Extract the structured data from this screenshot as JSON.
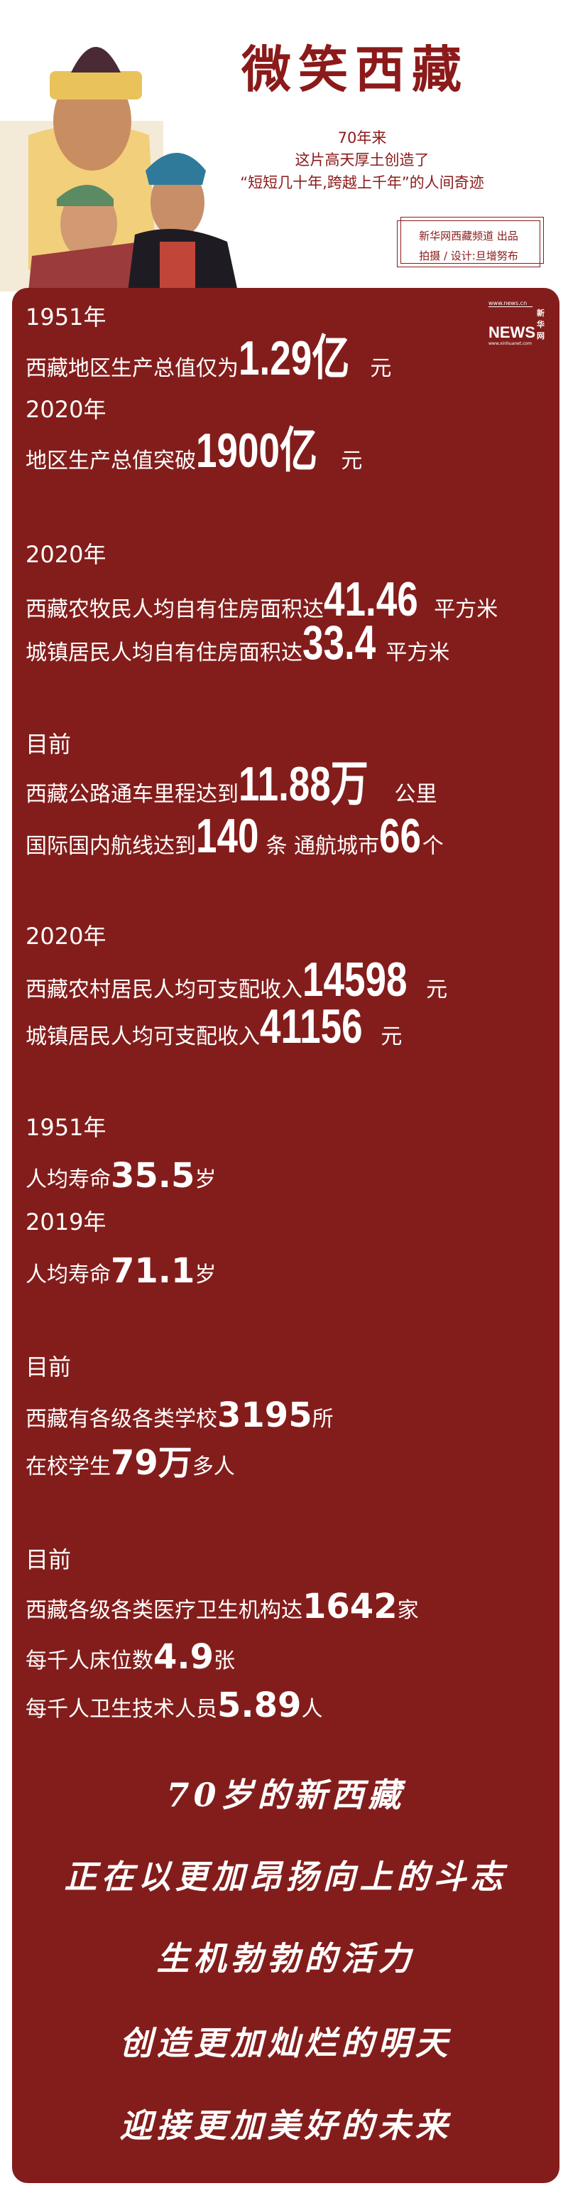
{
  "header": {
    "title": "微笑西藏",
    "subtitle_lines": [
      "70年来",
      "这片高天厚土创造了",
      "“短短几十年,跨越上千年”的人间奇迹"
    ],
    "credits": [
      "新华网西藏频道 出品",
      "拍摄 / 设计:旦增努布"
    ],
    "logo": {
      "top": "www.news.cn",
      "brand": "新华网",
      "mark": "NEWS",
      "bottom": "www.xinhuanet.com"
    }
  },
  "colors": {
    "panel": "#831d1b",
    "title": "#8b1a1a",
    "text": "#ffffff"
  },
  "sections": [
    {
      "style": "condensed",
      "lines": [
        [
          {
            "k": "year",
            "s": "1951年"
          }
        ],
        [
          {
            "k": "txt",
            "s": "西藏地区生产总值仅为"
          },
          {
            "k": "num",
            "s": "1.29亿"
          },
          {
            "k": "sfx",
            "s": "元"
          }
        ],
        [
          {
            "k": "year",
            "s": "2020年"
          }
        ],
        [
          {
            "k": "txt",
            "s": "地区生产总值突破"
          },
          {
            "k": "num",
            "s": "1900亿"
          },
          {
            "k": "sfx",
            "s": "元"
          }
        ]
      ]
    },
    {
      "style": "condensed",
      "lines": [
        [
          {
            "k": "year",
            "s": "2020年"
          }
        ],
        [
          {
            "k": "txt",
            "s": "西藏农牧民人均自有住房面积达"
          },
          {
            "k": "num",
            "s": "41.46"
          },
          {
            "k": "sfx",
            "s": "平方米"
          }
        ],
        [
          {
            "k": "txt",
            "s": "城镇居民人均自有住房面积达"
          },
          {
            "k": "num",
            "s": "33.4"
          },
          {
            "k": "sfx",
            "s": "平方米"
          }
        ]
      ]
    },
    {
      "style": "condensed",
      "lines": [
        [
          {
            "k": "year",
            "s": "目前"
          }
        ],
        [
          {
            "k": "txt",
            "s": "西藏公路通车里程达到"
          },
          {
            "k": "num",
            "s": "11.88万"
          },
          {
            "k": "sfx",
            "s": " 公里"
          }
        ],
        [
          {
            "k": "txt",
            "s": "国际国内航线达到"
          },
          {
            "k": "num",
            "s": "140"
          },
          {
            "k": "sfx",
            "s": "条 通航城市"
          },
          {
            "k": "num",
            "s": "66"
          },
          {
            "k": "sfx",
            "s": "个"
          }
        ]
      ]
    },
    {
      "style": "condensed",
      "lines": [
        [
          {
            "k": "year",
            "s": "2020年"
          }
        ],
        [
          {
            "k": "txt",
            "s": "西藏农村居民人均可支配收入"
          },
          {
            "k": "num",
            "s": "14598"
          },
          {
            "k": "sfx",
            "s": "元"
          }
        ],
        [
          {
            "k": "txt",
            "s": "城镇居民人均可支配收入"
          },
          {
            "k": "num",
            "s": "41156"
          },
          {
            "k": "sfx",
            "s": "元"
          }
        ]
      ]
    },
    {
      "style": "round",
      "lines": [
        [
          {
            "k": "year",
            "s": "1951年"
          }
        ],
        [
          {
            "k": "txt",
            "s": "人均寿命"
          },
          {
            "k": "num",
            "s": "35.5"
          },
          {
            "k": "sfx",
            "s": "岁"
          }
        ],
        [
          {
            "k": "year",
            "s": "2019年"
          }
        ],
        [
          {
            "k": "txt",
            "s": "人均寿命"
          },
          {
            "k": "num",
            "s": "71.1"
          },
          {
            "k": "sfx",
            "s": "岁"
          }
        ]
      ]
    },
    {
      "style": "round",
      "lines": [
        [
          {
            "k": "year",
            "s": "目前"
          }
        ],
        [
          {
            "k": "txt",
            "s": "西藏有各级各类学校"
          },
          {
            "k": "num",
            "s": "3195"
          },
          {
            "k": "sfx",
            "s": "所"
          }
        ],
        [
          {
            "k": "txt",
            "s": "在校学生"
          },
          {
            "k": "num",
            "s": "79万"
          },
          {
            "k": "sfx",
            "s": " 多人"
          }
        ]
      ]
    },
    {
      "style": "round",
      "lines": [
        [
          {
            "k": "year",
            "s": "目前"
          }
        ],
        [
          {
            "k": "txt",
            "s": "西藏各级各类医疗卫生机构达"
          },
          {
            "k": "num",
            "s": "1642"
          },
          {
            "k": "sfx",
            "s": "家"
          }
        ],
        [
          {
            "k": "txt",
            "s": "每千人床位数"
          },
          {
            "k": "num",
            "s": "4.9"
          },
          {
            "k": "sfx",
            "s": "张"
          }
        ],
        [
          {
            "k": "txt",
            "s": "每千人卫生技术人员"
          },
          {
            "k": "num",
            "s": "5.89"
          },
          {
            "k": "sfx",
            "s": "人"
          }
        ]
      ]
    }
  ],
  "closing": [
    "70岁的新西藏",
    "正在以更加昂扬向上的斗志",
    "生机勃勃的活力",
    "创造更加灿烂的明天",
    "迎接更加美好的未来"
  ]
}
